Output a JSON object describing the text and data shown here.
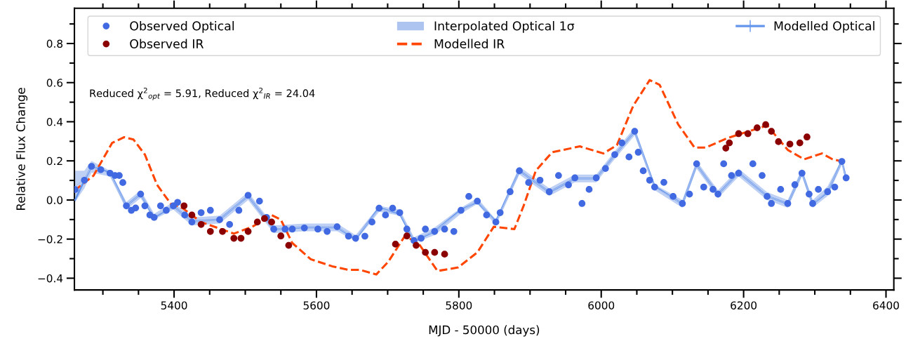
{
  "chart_data": {
    "type": "scatter",
    "xlabel": "MJD - 50000 (days)",
    "ylabel": "Relative Flux Change",
    "xlim": [
      5260,
      6411
    ],
    "ylim": [
      -0.46,
      0.98
    ],
    "xticks": [
      5400,
      5600,
      5800,
      6000,
      6200,
      6400
    ],
    "yticks": [
      {
        "value": -0.4,
        "label": "−0.4"
      },
      {
        "value": -0.2,
        "label": "−0.2"
      },
      {
        "value": 0.0,
        "label": "0.0"
      },
      {
        "value": 0.2,
        "label": "0.2"
      },
      {
        "value": 0.4,
        "label": "0.4"
      },
      {
        "value": 0.6,
        "label": "0.6"
      },
      {
        "value": 0.8,
        "label": "0.8"
      }
    ],
    "grid": false,
    "legend": "top",
    "annotations": [
      "Reduced χ$^{2}$$_{opt}$ = 5.91, Reduced χ$^{2}$$_{IR}$ = 24.04"
    ],
    "series": [
      {
        "name": "Observed Optical",
        "color": "#4169e1",
        "x": [
          5261,
          5274,
          5284,
          5297,
          5310,
          5317,
          5323,
          5328,
          5333,
          5340,
          5346,
          5353,
          5359,
          5366,
          5372,
          5381,
          5389,
          5399,
          5405,
          5415,
          5425,
          5438,
          5451,
          5464,
          5478,
          5491,
          5504,
          5520,
          5530,
          5540,
          5556,
          5566,
          5583,
          5602,
          5615,
          5629,
          5645,
          5655,
          5668,
          5678,
          5688,
          5697,
          5707,
          5717,
          5727,
          5737,
          5747,
          5753,
          5766,
          5780,
          5793,
          5803,
          5814,
          5826,
          5839,
          5852,
          5858,
          5872,
          5885,
          5898,
          5914,
          5927,
          5940,
          5954,
          5963,
          5973,
          5983,
          5993,
          6006,
          6019,
          6029,
          6039,
          6047,
          6052,
          6059,
          6068,
          6075,
          6088,
          6101,
          6114,
          6124,
          6134,
          6144,
          6157,
          6164,
          6172,
          6183,
          6193,
          6213,
          6226,
          6233,
          6239,
          6252,
          6262,
          6272,
          6282,
          6292,
          6297,
          6305,
          6318,
          6328,
          6338,
          6344
        ],
        "values": [
          0.053,
          0.101,
          0.172,
          0.155,
          0.137,
          0.125,
          0.125,
          0.089,
          -0.03,
          -0.053,
          -0.041,
          0.03,
          -0.03,
          -0.077,
          -0.089,
          -0.03,
          -0.053,
          -0.03,
          -0.012,
          -0.077,
          -0.113,
          -0.065,
          -0.053,
          -0.101,
          -0.125,
          -0.053,
          0.024,
          -0.006,
          -0.089,
          -0.149,
          -0.149,
          -0.149,
          -0.143,
          -0.149,
          -0.161,
          -0.137,
          -0.185,
          -0.196,
          -0.185,
          -0.113,
          -0.042,
          -0.077,
          -0.042,
          -0.065,
          -0.149,
          -0.208,
          -0.196,
          -0.149,
          -0.161,
          -0.149,
          -0.161,
          -0.053,
          0.018,
          -0.006,
          -0.077,
          -0.113,
          -0.065,
          0.042,
          0.149,
          0.089,
          0.101,
          0.042,
          0.125,
          0.077,
          0.113,
          -0.018,
          0.054,
          0.113,
          0.161,
          0.232,
          0.292,
          0.22,
          0.351,
          0.244,
          0.149,
          0.101,
          0.066,
          0.09,
          0.018,
          -0.018,
          0.03,
          0.185,
          0.066,
          0.054,
          0.03,
          0.185,
          0.125,
          0.137,
          0.185,
          0.125,
          0.018,
          -0.018,
          0.054,
          -0.018,
          0.078,
          0.137,
          0.03,
          -0.018,
          0.054,
          0.042,
          0.066,
          0.197,
          0.113
        ]
      },
      {
        "name": "Observed IR",
        "color": "#8b0000",
        "x": [
          5414,
          5425,
          5438,
          5451,
          5468,
          5484,
          5494,
          5504,
          5517,
          5527,
          5537,
          5550,
          5561,
          5711,
          5727,
          5740,
          5753,
          5766,
          5780,
          6175,
          6180,
          6193,
          6206,
          6219,
          6231,
          6239,
          6249,
          6265,
          6279,
          6289
        ],
        "values": [
          -0.03,
          -0.077,
          -0.125,
          -0.161,
          -0.161,
          -0.196,
          -0.196,
          -0.161,
          -0.113,
          -0.095,
          -0.113,
          -0.184,
          -0.232,
          -0.226,
          -0.184,
          -0.232,
          -0.268,
          -0.268,
          -0.277,
          0.265,
          0.292,
          0.339,
          0.339,
          0.369,
          0.385,
          0.351,
          0.298,
          0.286,
          0.292,
          0.322
        ]
      },
      {
        "name": "Interpolated Optical 1σ",
        "type": "line",
        "line_style": "solid",
        "color": "#aec4f0",
        "x": [
          5261,
          5274,
          5284,
          5310,
          5333,
          5353,
          5372,
          5399,
          5425,
          5464,
          5504,
          5540,
          5583,
          5629,
          5655,
          5688,
          5717,
          5737,
          5766,
          5803,
          5826,
          5852,
          5885,
          5927,
          5963,
          5993,
          6019,
          6047,
          6075,
          6114,
          6134,
          6164,
          6193,
          6233,
          6262,
          6282,
          6297,
          6318,
          6338,
          6344
        ],
        "values": [
          0.07,
          0.105,
          0.17,
          0.135,
          -0.03,
          0.03,
          -0.085,
          -0.03,
          -0.11,
          -0.1,
          0.02,
          -0.15,
          -0.14,
          -0.14,
          -0.195,
          -0.045,
          -0.065,
          -0.205,
          -0.16,
          -0.055,
          -0.005,
          -0.115,
          0.15,
          0.04,
          0.11,
          0.11,
          0.23,
          0.35,
          0.065,
          -0.02,
          0.18,
          0.03,
          0.14,
          0.02,
          -0.02,
          0.14,
          -0.02,
          0.045,
          0.195,
          0.11
        ],
        "lower": [
          -0.01,
          0.06,
          0.14,
          0.12,
          -0.05,
          0.01,
          -0.1,
          -0.05,
          -0.13,
          -0.12,
          0.0,
          -0.17,
          -0.16,
          -0.16,
          -0.21,
          -0.06,
          -0.08,
          -0.22,
          -0.18,
          -0.07,
          -0.02,
          -0.13,
          0.13,
          0.02,
          0.09,
          0.09,
          0.21,
          0.33,
          0.05,
          -0.04,
          0.16,
          0.01,
          0.12,
          0.0,
          -0.04,
          0.12,
          -0.04,
          0.02,
          0.18,
          0.09
        ],
        "upper": [
          0.15,
          0.15,
          0.2,
          0.15,
          -0.01,
          0.05,
          -0.07,
          -0.01,
          -0.09,
          -0.08,
          0.04,
          -0.13,
          -0.12,
          -0.12,
          -0.18,
          -0.03,
          -0.05,
          -0.19,
          -0.14,
          -0.04,
          0.01,
          -0.1,
          0.17,
          0.06,
          0.13,
          0.13,
          0.25,
          0.37,
          0.08,
          -0.0,
          0.2,
          0.05,
          0.16,
          0.04,
          0.0,
          0.16,
          0.0,
          0.07,
          0.21,
          0.13
        ]
      },
      {
        "name": "Modelled IR",
        "type": "line",
        "line_style": "dashed",
        "color": "#ff4500",
        "x": [
          5260,
          5287,
          5313,
          5330,
          5343,
          5359,
          5376,
          5395,
          5412,
          5438,
          5484,
          5510,
          5537,
          5550,
          5566,
          5592,
          5622,
          5645,
          5661,
          5684,
          5701,
          5724,
          5743,
          5770,
          5799,
          5826,
          5849,
          5878,
          5891,
          5908,
          5931,
          5970,
          6003,
          6022,
          6045,
          6068,
          6082,
          6108,
          6131,
          6147,
          6177,
          6233,
          6262,
          6285,
          6310,
          6325,
          6338
        ],
        "values": [
          0.048,
          0.125,
          0.292,
          0.321,
          0.309,
          0.232,
          0.078,
          -0.018,
          -0.042,
          -0.113,
          -0.172,
          -0.137,
          -0.077,
          -0.101,
          -0.22,
          -0.303,
          -0.339,
          -0.357,
          -0.357,
          -0.381,
          -0.315,
          -0.185,
          -0.22,
          -0.363,
          -0.345,
          -0.268,
          -0.137,
          -0.149,
          -0.03,
          0.149,
          0.244,
          0.274,
          0.238,
          0.28,
          0.482,
          0.613,
          0.589,
          0.387,
          0.268,
          0.268,
          0.316,
          0.381,
          0.256,
          0.208,
          0.238,
          0.208,
          0.197
        ]
      },
      {
        "name": "Modelled Optical",
        "type": "line",
        "line_style": "solid",
        "color": "#6495ed",
        "x": [
          5261,
          5274,
          5284,
          5310,
          5333,
          5353,
          5372,
          5399,
          5425,
          5464,
          5504,
          5540,
          5583,
          5629,
          5655,
          5688,
          5717,
          5737,
          5766,
          5803,
          5826,
          5852,
          5885,
          5927,
          5963,
          5993,
          6019,
          6047,
          6075,
          6114,
          6134,
          6164,
          6193,
          6233,
          6262,
          6282,
          6297,
          6318,
          6338,
          6344
        ],
        "values": [
          0.0,
          0.1,
          0.17,
          0.14,
          -0.03,
          0.03,
          -0.09,
          -0.03,
          -0.11,
          -0.1,
          0.02,
          -0.15,
          -0.14,
          -0.14,
          -0.2,
          -0.04,
          -0.07,
          -0.21,
          -0.16,
          -0.05,
          -0.01,
          -0.11,
          0.15,
          0.04,
          0.11,
          0.11,
          0.23,
          0.35,
          0.07,
          -0.02,
          0.18,
          0.03,
          0.14,
          0.02,
          -0.02,
          0.14,
          -0.02,
          0.04,
          0.2,
          0.11
        ]
      }
    ]
  }
}
